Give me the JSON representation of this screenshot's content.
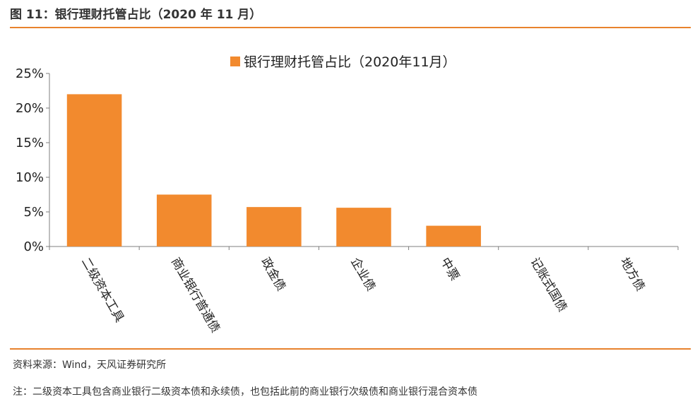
{
  "figure": {
    "title": "图 11：银行理财托管占比（2020 年 11 月）",
    "source": "资料来源：Wind，天风证券研究所",
    "note": "注：二级资本工具包含商业银行二级资本债和永续债，也包括此前的商业银行次级债和商业银行混合资本债"
  },
  "chart_data": {
    "type": "bar",
    "title": "",
    "xlabel": "",
    "ylabel": "",
    "categories": [
      "二级资本工具",
      "商业银行普通债",
      "政金债",
      "企业债",
      "中票",
      "记账式国债",
      "地方债"
    ],
    "series": [
      {
        "name": "银行理财托管占比（2020年11月）",
        "values": [
          22.0,
          7.5,
          5.7,
          5.6,
          3.0,
          0.0,
          0.0
        ],
        "color": "#f28a2e"
      }
    ],
    "ylim": [
      0,
      25
    ],
    "yticks": [
      "0%",
      "5%",
      "10%",
      "15%",
      "20%",
      "25%"
    ],
    "ytick_values": [
      0,
      5,
      10,
      15,
      20,
      25
    ],
    "grid": false,
    "legend_position": "top-center"
  },
  "colors": {
    "accent": "#e8822d",
    "bar": "#f28a2e",
    "axis": "#7f7f7f"
  }
}
